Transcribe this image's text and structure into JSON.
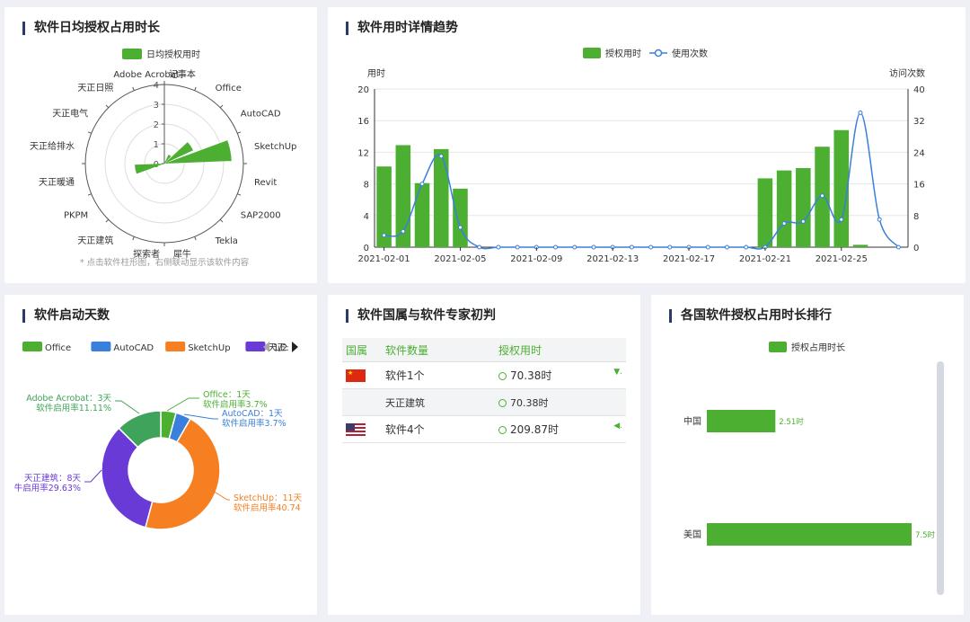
{
  "colors": {
    "green": "#4caf32",
    "blue": "#3a7fdb",
    "orange": "#f57f21",
    "purple": "#6a3ad6",
    "teal": "#3fa35b",
    "axis": "#999"
  },
  "polar": {
    "title": "软件日均授权占用时长",
    "legend": "日均授权用时",
    "note": "* 点击软件柱形图，右侧联动显示该软件内容",
    "rticks": [
      "0",
      "1",
      "2",
      "3",
      "4"
    ],
    "categories": [
      "记事本",
      "Office",
      "AutoCAD",
      "SketchUp",
      "Revit",
      "SAP2000",
      "Tekla",
      "犀牛",
      "探索者",
      "天正建筑",
      "PKPM",
      "天正暖通",
      "天正给排水",
      "天正电气",
      "天正日照",
      "Adobe Acrobat"
    ],
    "values": [
      0,
      0.5,
      1.6,
      3.4,
      0,
      0,
      0,
      0,
      0,
      0,
      0,
      1.5,
      0,
      0,
      0,
      0
    ]
  },
  "trend": {
    "title": "软件用时详情趋势",
    "legend_bar": "授权用时",
    "legend_line": "使用次数",
    "ylabel_left": "用时",
    "ylabel_right": "访问次数",
    "left_ticks": [
      "0",
      "4",
      "8",
      "12",
      "16",
      "20"
    ],
    "right_ticks": [
      "0",
      "8",
      "16",
      "24",
      "32",
      "40"
    ],
    "x_ticks": [
      "2021-02-01",
      "2021-02-05",
      "2021-02-09",
      "2021-02-13",
      "2021-02-17",
      "2021-02-21",
      "2021-02-25"
    ],
    "chart_data": {
      "type": "bar",
      "x": [
        "02-01",
        "02-02",
        "02-03",
        "02-04",
        "02-05",
        "02-06",
        "02-07",
        "02-08",
        "02-09",
        "02-10",
        "02-11",
        "02-12",
        "02-13",
        "02-14",
        "02-15",
        "02-16",
        "02-17",
        "02-18",
        "02-19",
        "02-20",
        "02-21",
        "02-22",
        "02-23",
        "02-24",
        "02-25",
        "02-26",
        "02-27",
        "02-28"
      ],
      "series": [
        {
          "name": "授权用时",
          "axis": "left",
          "values": [
            10.2,
            12.9,
            8.1,
            12.4,
            7.4,
            0,
            0,
            0,
            0,
            0,
            0,
            0,
            0,
            0,
            0,
            0,
            0,
            0,
            0,
            0,
            8.7,
            9.7,
            10,
            12.7,
            14.8,
            0.3,
            0,
            0
          ]
        },
        {
          "name": "使用次数",
          "axis": "right",
          "type": "line",
          "values": [
            3,
            4,
            16,
            23,
            5,
            0,
            0,
            0,
            0,
            0,
            0,
            0,
            0,
            0,
            0,
            0,
            0,
            0,
            0,
            0,
            0,
            6,
            6.5,
            13,
            7,
            34,
            7,
            0
          ]
        }
      ],
      "ylim_left": [
        0,
        20
      ],
      "ylim_right": [
        0,
        40
      ]
    }
  },
  "donut": {
    "title": "软件启动天数",
    "legend": [
      {
        "name": "Office",
        "color": "#4caf32"
      },
      {
        "name": "AutoCAD",
        "color": "#3a7fdb"
      },
      {
        "name": "SketchUp",
        "color": "#f57f21"
      },
      {
        "name": "天正:",
        "color": "#6a3ad6"
      }
    ],
    "page": "1/2",
    "chart_data": {
      "type": "pie",
      "slices": [
        {
          "name": "Office",
          "value": 1,
          "label1": "Office：1天",
          "label2": "软件启用率3.7%"
        },
        {
          "name": "AutoCAD",
          "value": 1,
          "label1": "AutoCAD：1天",
          "label2": "软件启用率3.7%"
        },
        {
          "name": "SketchUp",
          "value": 11,
          "label1": "SketchUp：11天",
          "label2": "软件启用率40.74"
        },
        {
          "name": "天正建筑",
          "value": 8,
          "label1": "天正建筑：8天",
          "label2": "牛启用率29.63%"
        },
        {
          "name": "Adobe Acrobat",
          "value": 3,
          "label1": "Adobe Acrobat：3天",
          "label2": "软件启用率11.11%"
        }
      ]
    }
  },
  "table": {
    "title": "软件国属与软件专家初判",
    "headers": [
      "国属",
      "软件数量",
      "授权用时"
    ],
    "rows": [
      {
        "count": "软件1个",
        "time": "70.38时"
      },
      {
        "count": "天正建筑",
        "time": "70.38时"
      },
      {
        "count": "软件4个",
        "time": "209.87时"
      }
    ]
  },
  "ranking": {
    "title": "各国软件授权占用时长排行",
    "legend": "授权占用时长",
    "chart_data": {
      "type": "bar",
      "orientation": "horizontal",
      "categories": [
        "中国",
        "美国"
      ],
      "values": [
        2.51,
        7.5
      ],
      "labels": [
        "2.51时",
        "7.5时"
      ]
    }
  }
}
